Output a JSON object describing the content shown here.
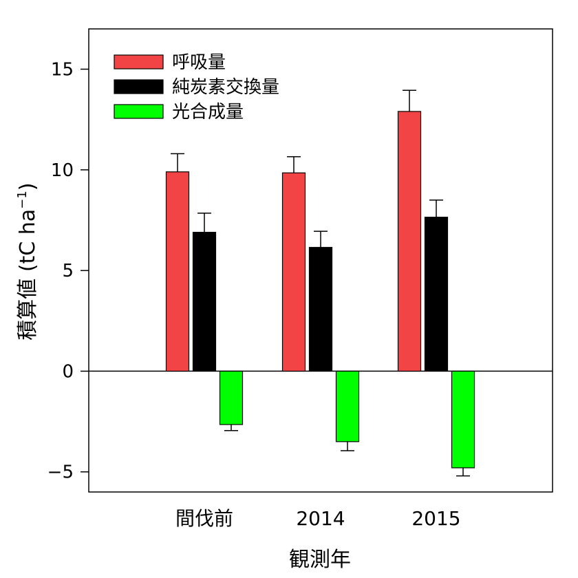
{
  "chart_data": {
    "type": "bar",
    "title": "",
    "xlabel": "観測年",
    "ylabel_main": "積算値 (tC ha",
    "ylabel_sup": "−1",
    "ylabel_close": ")",
    "ylim": [
      -6,
      17
    ],
    "yticks": [
      -5,
      0,
      5,
      10,
      15
    ],
    "grid": false,
    "legend_position": "top-left",
    "categories": [
      "間伐前",
      "2014",
      "2015"
    ],
    "series": [
      {
        "name": "呼吸量",
        "color": "#f24444",
        "values": [
          9.9,
          9.85,
          12.9
        ],
        "errors": [
          0.9,
          0.8,
          1.05
        ]
      },
      {
        "name": "純炭素交換量",
        "color": "#000000",
        "values": [
          6.9,
          6.15,
          7.65
        ],
        "errors": [
          0.95,
          0.8,
          0.85
        ]
      },
      {
        "name": "光合成量",
        "color": "#00ff00",
        "values": [
          -2.65,
          -3.5,
          -4.8
        ],
        "errors": [
          0.3,
          0.45,
          0.4
        ]
      }
    ]
  }
}
